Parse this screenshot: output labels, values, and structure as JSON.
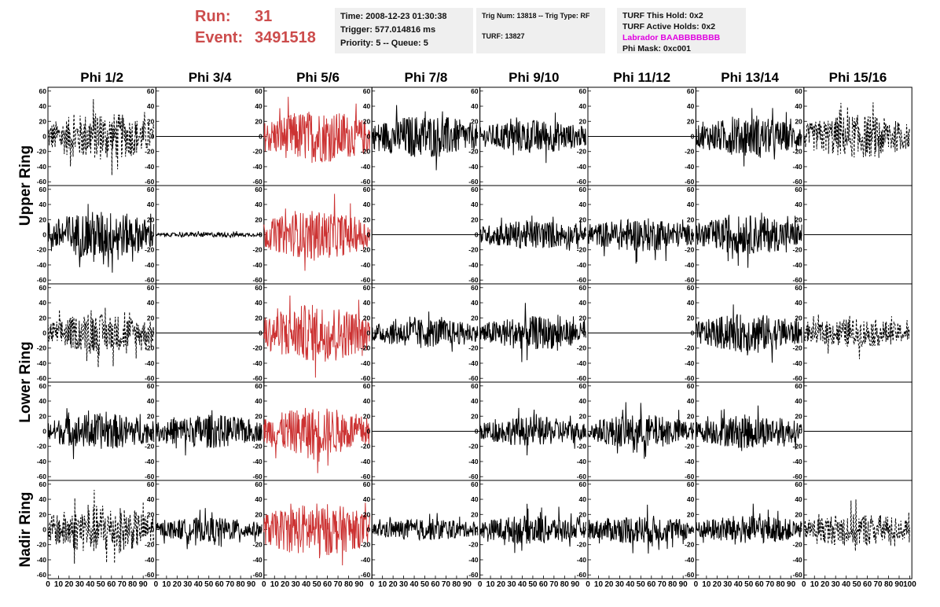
{
  "header": {
    "run_label": "Run:",
    "run_value": "31",
    "event_label": "Event:",
    "event_value": "3491518",
    "time": "Time: 2008-12-23 01:30:38",
    "trigger": "Trigger: 577.014816 ms",
    "priority": "Priority: 5 -- Queue: 5",
    "trig_num": "Trig Num: 13818 -- Trig Type: RF",
    "turf": "TURF: 13827",
    "turf_this_hold": "TURF This Hold: 0x2",
    "turf_active_holds": "TURF Active Holds: 0x2",
    "labrador": "Labrador BAABBBBBBB",
    "phi_mask": "Phi Mask: 0xc001"
  },
  "colors": {
    "run_text": "#cc4c4c",
    "labrador_text": "#e000e0",
    "trace_default": "#000000",
    "trace_triggered": "#cc3333",
    "info_bg": "#efefef"
  },
  "chart_data": {
    "type": "line",
    "phi_headers": [
      "Phi 1/2",
      "Phi 3/4",
      "Phi 5/6",
      "Phi 7/8",
      "Phi 9/10",
      "Phi 11/12",
      "Phi 13/14",
      "Phi 15/16"
    ],
    "ring_labels": [
      {
        "label": "Upper Ring",
        "rows": [
          0,
          1
        ]
      },
      {
        "label": "Lower Ring",
        "rows": [
          2,
          3
        ]
      },
      {
        "label": "Nadir Ring",
        "rows": [
          4,
          4
        ]
      }
    ],
    "y_ticks": [
      60,
      40,
      20,
      0,
      -20,
      -40,
      -60
    ],
    "x_ticks": [
      0,
      10,
      20,
      30,
      40,
      50,
      60,
      70,
      80,
      90,
      100
    ],
    "x_tick_labels": [
      "0",
      "10",
      "20",
      "30",
      "40",
      "50",
      "60",
      "70",
      "80",
      "90",
      "100"
    ],
    "xlim": [
      0,
      100
    ],
    "ylim": [
      -65,
      65
    ],
    "rows": [
      {
        "style": [
          "dashed",
          "flat",
          "red",
          "solid",
          "solid",
          "flat",
          "solid",
          "dashed"
        ],
        "amp": [
          20,
          0,
          22,
          18,
          14,
          0,
          16,
          18
        ]
      },
      {
        "style": [
          "solid",
          "solid",
          "red",
          "flat",
          "solid",
          "solid",
          "solid",
          "flat"
        ],
        "amp": [
          20,
          2,
          20,
          0,
          12,
          14,
          16,
          0
        ]
      },
      {
        "style": [
          "dashed",
          "flat",
          "red",
          "solid",
          "solid",
          "flat",
          "solid",
          "dashed"
        ],
        "amp": [
          16,
          0,
          24,
          12,
          14,
          0,
          16,
          12
        ]
      },
      {
        "style": [
          "solid",
          "solid",
          "red",
          "flat",
          "solid",
          "solid",
          "solid",
          "flat"
        ],
        "amp": [
          15,
          14,
          20,
          0,
          12,
          14,
          14,
          0
        ]
      },
      {
        "style": [
          "dashed",
          "solid",
          "red",
          "solid",
          "solid",
          "solid",
          "solid",
          "dashed"
        ],
        "amp": [
          20,
          10,
          22,
          9,
          12,
          12,
          12,
          14
        ]
      }
    ]
  }
}
